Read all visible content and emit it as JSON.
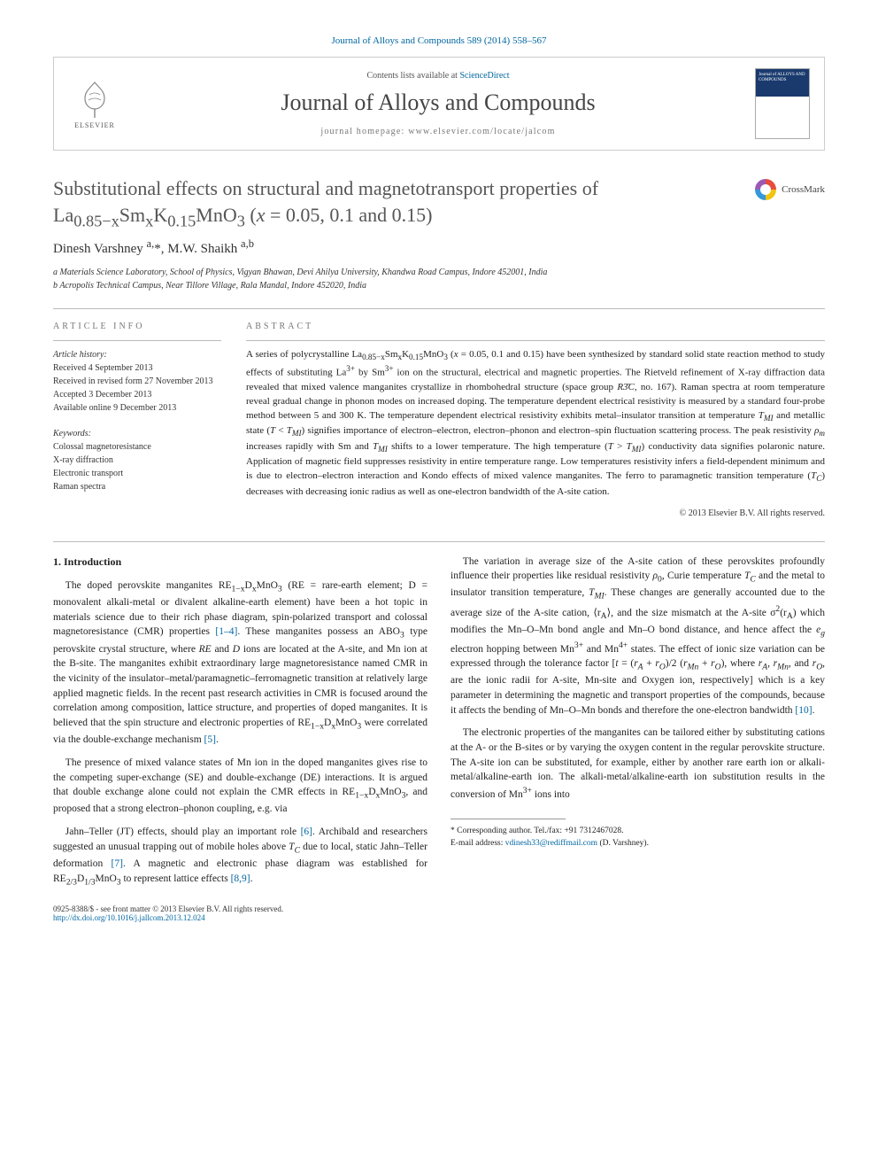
{
  "citation": "Journal of Alloys and Compounds 589 (2014) 558–567",
  "header": {
    "contents_prefix": "Contents lists available at ",
    "contents_link": "ScienceDirect",
    "journal_name": "Journal of Alloys and Compounds",
    "homepage_prefix": "journal homepage: ",
    "homepage_url": "www.elsevier.com/locate/jalcom",
    "publisher": "ELSEVIER",
    "cover_title": "Journal of ALLOYS AND COMPOUNDS"
  },
  "article": {
    "title_html": "Substitutional effects on structural and magnetotransport properties of La<sub>0.85−x</sub>Sm<sub>x</sub>K<sub>0.15</sub>MnO<sub>3</sub> (<i>x</i> = 0.05, 0.1 and 0.15)",
    "crossmark": "CrossMark",
    "authors_html": "Dinesh Varshney <sup>a,</sup>*, M.W. Shaikh <sup>a,b</sup>",
    "aff_a": "a Materials Science Laboratory, School of Physics, Vigyan Bhawan, Devi Ahilya University, Khandwa Road Campus, Indore 452001, India",
    "aff_b": "b Acropolis Technical Campus, Near Tillore Village, Rala Mandal, Indore 452020, India"
  },
  "info": {
    "head": "ARTICLE INFO",
    "history_label": "Article history:",
    "received": "Received 4 September 2013",
    "revised": "Received in revised form 27 November 2013",
    "accepted": "Accepted 3 December 2013",
    "online": "Available online 9 December 2013",
    "keywords_label": "Keywords:",
    "kw1": "Colossal magnetoresistance",
    "kw2": "X-ray diffraction",
    "kw3": "Electronic transport",
    "kw4": "Raman spectra"
  },
  "abstract": {
    "head": "ABSTRACT",
    "text_html": "A series of polycrystalline La<sub>0.85−x</sub>Sm<sub>x</sub>K<sub>0.15</sub>MnO<sub>3</sub> (<i>x</i> = 0.05, 0.1 and 0.15) have been synthesized by standard solid state reaction method to study effects of substituting La<sup>3+</sup> by Sm<sup>3+</sup> ion on the structural, electrical and magnetic properties. The Rietveld refinement of X-ray diffraction data revealed that mixed valence manganites crystallize in rhombohedral structure (space group <i>R3̄C</i>, no. 167). Raman spectra at room temperature reveal gradual change in phonon modes on increased doping. The temperature dependent electrical resistivity is measured by a standard four-probe method between 5 and 300 K. The temperature dependent electrical resistivity exhibits metal–insulator transition at temperature <i>T<sub>MI</sub></i> and metallic state (<i>T</i> &lt; <i>T<sub>MI</sub></i>) signifies importance of electron–electron, electron–phonon and electron–spin fluctuation scattering process. The peak resistivity <i>ρ<sub>m</sub></i> increases rapidly with Sm and <i>T<sub>MI</sub></i> shifts to a lower temperature. The high temperature (<i>T</i> &gt; <i>T<sub>MI</sub></i>) conductivity data signifies polaronic nature. Application of magnetic field suppresses resistivity in entire temperature range. Low temperatures resistivity infers a field-dependent minimum and is due to electron–electron interaction and Kondo effects of mixed valence manganites. The ferro to paramagnetic transition temperature (<i>T<sub>C</sub></i>) decreases with decreasing ionic radius as well as one-electron bandwidth of the A-site cation.",
    "copyright": "© 2013 Elsevier B.V. All rights reserved."
  },
  "body": {
    "sec1": "1. Introduction",
    "p1_html": "The doped perovskite manganites RE<sub>1−x</sub>D<sub>x</sub>MnO<sub>3</sub> (RE = rare-earth element; D = monovalent alkali-metal or divalent alkaline-earth element) have been a hot topic in materials science due to their rich phase diagram, spin-polarized transport and colossal magnetoresistance (CMR) properties <span class='ref-link'>[1–4]</span>. These manganites possess an ABO<sub>3</sub> type perovskite crystal structure, where <i>RE</i> and <i>D</i> ions are located at the A-site, and Mn ion at the B-site. The manganites exhibit extraordinary large magnetoresistance named CMR in the vicinity of the insulator–metal/paramagnetic–ferromagnetic transition at relatively large applied magnetic fields. In the recent past research activities in CMR is focused around the correlation among composition, lattice structure, and properties of doped manganites. It is believed that the spin structure and electronic properties of RE<sub>1−x</sub>D<sub>x</sub>MnO<sub>3</sub> were correlated via the double-exchange mechanism <span class='ref-link'>[5]</span>.",
    "p2_html": "The presence of mixed valance states of Mn ion in the doped manganites gives rise to the competing super-exchange (SE) and double-exchange (DE) interactions. It is argued that double exchange alone could not explain the CMR effects in RE<sub>1−x</sub>D<sub>x</sub>MnO<sub>3</sub>, and proposed that a strong electron–phonon coupling, e.g. via",
    "p3_html": "Jahn–Teller (JT) effects, should play an important role <span class='ref-link'>[6]</span>. Archibald and researchers suggested an unusual trapping out of mobile holes above <i>T<sub>C</sub></i> due to local, static Jahn–Teller deformation <span class='ref-link'>[7]</span>. A magnetic and electronic phase diagram was established for RE<sub>2/3</sub>D<sub>1/3</sub>MnO<sub>3</sub> to represent lattice effects <span class='ref-link'>[8,9]</span>.",
    "p4_html": "The variation in average size of the A-site cation of these perovskites profoundly influence their properties like residual resistivity <i>ρ</i><sub>0</sub>, Curie temperature <i>T<sub>C</sub></i> and the metal to insulator transition temperature, <i>T<sub>MI</sub></i>. These changes are generally accounted due to the average size of the A-site cation, ⟨r<sub>A</sub>⟩, and the size mismatch at the A-site σ<sup>2</sup>(r<sub>A</sub>) which modifies the Mn–O–Mn bond angle and Mn–O bond distance, and hence affect the <i>e<sub>g</sub></i> electron hopping between Mn<sup>3+</sup> and Mn<sup>4+</sup> states. The effect of ionic size variation can be expressed through the tolerance factor [<i>t</i> = (<i>r<sub>A</sub></i> + <i>r<sub>O</sub></i>)/2 (<i>r<sub>Mn</sub></i> + <i>r<sub>O</sub></i>), where <i>r<sub>A</sub></i>, <i>r<sub>Mn</sub></i>, and <i>r<sub>O</sub></i>, are the ionic radii for A-site, Mn-site and Oxygen ion, respectively] which is a key parameter in determining the magnetic and transport properties of the compounds, because it affects the bending of Mn–O–Mn bonds and therefore the one-electron bandwidth <span class='ref-link'>[10]</span>.",
    "p5_html": "The electronic properties of the manganites can be tailored either by substituting cations at the A- or the B-sites or by varying the oxygen content in the regular perovskite structure. The A-site ion can be substituted, for example, either by another rare earth ion or alkali-metal/alkaline-earth ion. The alkali-metal/alkaline-earth ion substitution results in the conversion of Mn<sup>3+</sup> ions into"
  },
  "footer": {
    "corresponding_label": "* Corresponding author. Tel./fax: +91 7312467028.",
    "email_label": "E-mail address:",
    "email": "vdinesh33@rediffmail.com",
    "email_suffix": "(D. Varshney).",
    "issn": "0925-8388/$ - see front matter © 2013 Elsevier B.V. All rights reserved.",
    "doi": "http://dx.doi.org/10.1016/j.jallcom.2013.12.024"
  },
  "colors": {
    "link": "#0066a1",
    "text": "#222222",
    "heading": "#555555",
    "rule": "#bbbbbb"
  }
}
